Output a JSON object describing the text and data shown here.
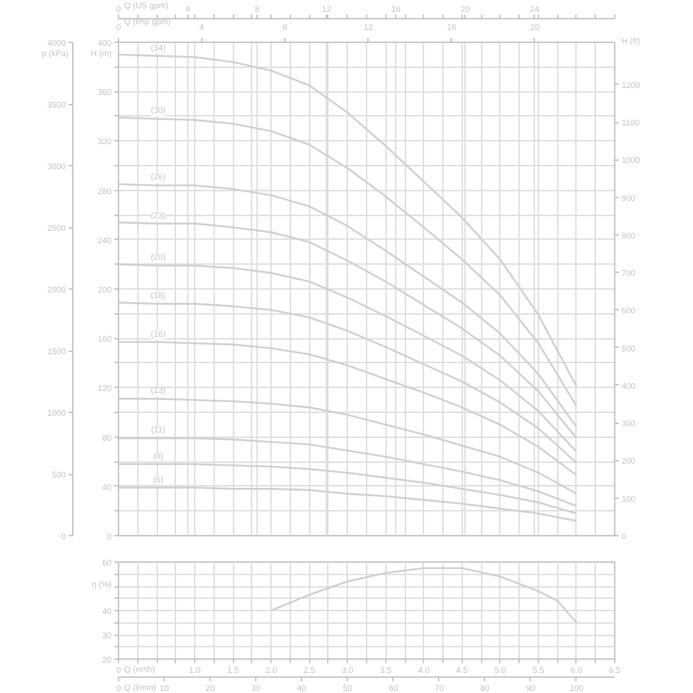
{
  "chart_data": [
    {
      "type": "line",
      "x": [
        0,
        2.2,
        4.4,
        6.6,
        8.81,
        11.01,
        13.21,
        15.41,
        17.61,
        19.81,
        22.01,
        24.22,
        26.42
      ],
      "series": [
        {
          "name": "(34)",
          "color": "#cfcfcf",
          "values": [
            390,
            389,
            388,
            384,
            377,
            365,
            343,
            316,
            287,
            258,
            224,
            179,
            121
          ]
        },
        {
          "name": "(30)",
          "color": "#cfcfcf",
          "values": [
            339,
            338,
            337,
            334,
            328,
            317,
            298,
            275,
            250,
            224,
            195,
            156,
            105
          ]
        },
        {
          "name": "(26)",
          "color": "#cfcfcf",
          "values": [
            285,
            284,
            284,
            281,
            276,
            267,
            251,
            231,
            210,
            189,
            164,
            131,
            88
          ]
        },
        {
          "name": "(23)",
          "color": "#cfcfcf",
          "values": [
            254,
            253,
            253,
            250,
            246,
            238,
            223,
            206,
            187,
            168,
            146,
            117,
            79
          ]
        },
        {
          "name": "(20)",
          "color": "#cfcfcf",
          "values": [
            220,
            219,
            219,
            217,
            213,
            206,
            193,
            178,
            162,
            146,
            126,
            101,
            68
          ]
        },
        {
          "name": "(18)",
          "color": "#cfcfcf",
          "values": [
            189,
            188,
            188,
            186,
            183,
            177,
            166,
            153,
            139,
            125,
            108,
            87,
            59
          ]
        },
        {
          "name": "(16)",
          "color": "#cfcfcf",
          "values": [
            157,
            157,
            156,
            155,
            152,
            147,
            138,
            127,
            116,
            104,
            90,
            72,
            49
          ]
        },
        {
          "name": "(13)",
          "color": "#cfcfcf",
          "values": [
            111,
            111,
            110,
            109,
            107,
            104,
            98,
            90,
            82,
            73,
            64,
            51,
            34
          ]
        },
        {
          "name": "(11)",
          "color": "#cfcfcf",
          "values": [
            79,
            79,
            79,
            78,
            76,
            74,
            69,
            64,
            58,
            52,
            45,
            36,
            24
          ]
        },
        {
          "name": "(8)",
          "color": "#cfcfcf",
          "values": [
            58,
            58,
            58,
            57,
            56,
            54,
            51,
            47,
            43,
            38,
            33,
            27,
            18
          ]
        },
        {
          "name": "(6)",
          "color": "#cfcfcf",
          "values": [
            39,
            39,
            39,
            38,
            38,
            37,
            34,
            32,
            29,
            26,
            22,
            18,
            12
          ]
        }
      ],
      "xlim": [
        0,
        28.62
      ],
      "xticks": [
        0,
        {
          "value": 1.1,
          "label": null
        },
        {
          "value": 2.2,
          "label": null
        },
        {
          "value": 3.3,
          "label": null
        },
        4,
        {
          "value": 4.4,
          "label": null
        },
        {
          "value": 5.5,
          "label": null
        },
        {
          "value": 6.6,
          "label": null
        },
        {
          "value": 7.71,
          "label": null
        },
        8,
        {
          "value": 8.81,
          "label": null
        },
        {
          "value": 9.91,
          "label": null
        },
        {
          "value": 11.01,
          "label": null
        },
        12,
        {
          "value": 12.11,
          "label": null
        },
        {
          "value": 13.21,
          "label": null
        },
        {
          "value": 14.31,
          "label": null
        },
        {
          "value": 15.41,
          "label": null
        },
        16,
        {
          "value": 16.51,
          "label": null
        },
        {
          "value": 17.61,
          "label": null
        },
        {
          "value": 18.71,
          "label": null
        },
        {
          "value": 19.81,
          "label": null
        },
        20,
        {
          "value": 20.91,
          "label": null
        },
        {
          "value": 22.01,
          "label": null
        },
        {
          "value": 23.12,
          "label": null
        },
        24,
        {
          "value": 24.22,
          "label": null
        },
        {
          "value": 25.32,
          "label": null
        },
        {
          "value": 26.42,
          "label": null
        },
        {
          "value": 27.52,
          "label": null
        },
        {
          "value": 28.62,
          "label": null
        }
      ],
      "xlabel": "Q (US gpm)",
      "x2lim": [
        0,
        23.83
      ],
      "x2ticks": [
        0,
        4,
        8,
        12,
        16,
        20
      ],
      "x2label": "Q (Imp gpm)",
      "ylim": [
        0,
        400
      ],
      "yticks": [
        0,
        {
          "value": 20,
          "label": null
        },
        40,
        {
          "value": 60,
          "label": null
        },
        80,
        {
          "value": 100,
          "label": null
        },
        120,
        {
          "value": 140,
          "label": null
        },
        160,
        {
          "value": 180,
          "label": null
        },
        200,
        {
          "value": 220,
          "label": null
        },
        240,
        {
          "value": 260,
          "label": null
        },
        280,
        {
          "value": 300,
          "label": null
        },
        320,
        {
          "value": 340,
          "label": null
        },
        360,
        {
          "value": 380,
          "label": null
        },
        400
      ],
      "ylabel": "H (m)",
      "y2lim": [
        0,
        1312
      ],
      "y2ticks": [
        0,
        100,
        200,
        300,
        400,
        500,
        600,
        700,
        800,
        900,
        1000,
        1100,
        1200
      ],
      "y2label": "H (ft)",
      "y3lim": [
        0,
        4000
      ],
      "y3ticks": [
        0,
        500,
        1000,
        1500,
        2000,
        2500,
        3000,
        3500,
        4000
      ],
      "y3label": "p (kPa)",
      "grid": true
    },
    {
      "type": "line",
      "x": [
        2,
        2.5,
        3,
        3.5,
        4,
        4.5,
        5,
        5.5,
        5.75,
        6
      ],
      "color": "#cfcfcf",
      "values": [
        40,
        46.5,
        52,
        55.5,
        57.5,
        57.5,
        54,
        48,
        44,
        35
      ],
      "xlim": [
        0,
        6.5
      ],
      "xticks": [
        0,
        {
          "value": 0.25,
          "label": null
        },
        {
          "value": 0.5,
          "label": null
        },
        {
          "value": 0.75,
          "label": null
        },
        {
          "value": 1,
          "label": "1.0"
        },
        {
          "value": 1.25,
          "label": null
        },
        1.5,
        {
          "value": 1.75,
          "label": null
        },
        {
          "value": 2,
          "label": "2.0"
        },
        {
          "value": 2.25,
          "label": null
        },
        2.5,
        {
          "value": 2.75,
          "label": null
        },
        {
          "value": 3,
          "label": "3.0"
        },
        {
          "value": 3.25,
          "label": null
        },
        3.5,
        {
          "value": 3.75,
          "label": null
        },
        {
          "value": 4,
          "label": "4.0"
        },
        {
          "value": 4.25,
          "label": null
        },
        4.5,
        {
          "value": 4.75,
          "label": null
        },
        {
          "value": 5,
          "label": "5.0"
        },
        {
          "value": 5.25,
          "label": null
        },
        5.5,
        {
          "value": 5.75,
          "label": null
        },
        {
          "value": 6,
          "label": "6.0"
        },
        {
          "value": 6.25,
          "label": null
        },
        6.5
      ],
      "xlabel": "Q (m³/h)",
      "x2lim": [
        0,
        108.33
      ],
      "x2ticks": [
        0,
        10,
        20,
        30,
        40,
        50,
        60,
        70,
        80,
        90,
        100
      ],
      "x2label": "Q (l/min)",
      "ylim": [
        20,
        60
      ],
      "yticks": [
        20,
        {
          "value": 25,
          "label": null
        },
        30,
        {
          "value": 35,
          "label": null
        },
        40,
        {
          "value": 45,
          "label": null
        },
        {
          "value": 50,
          "label": null
        },
        {
          "value": 55,
          "label": null
        },
        60
      ],
      "ylabel": "η (%)",
      "grid": true
    }
  ]
}
